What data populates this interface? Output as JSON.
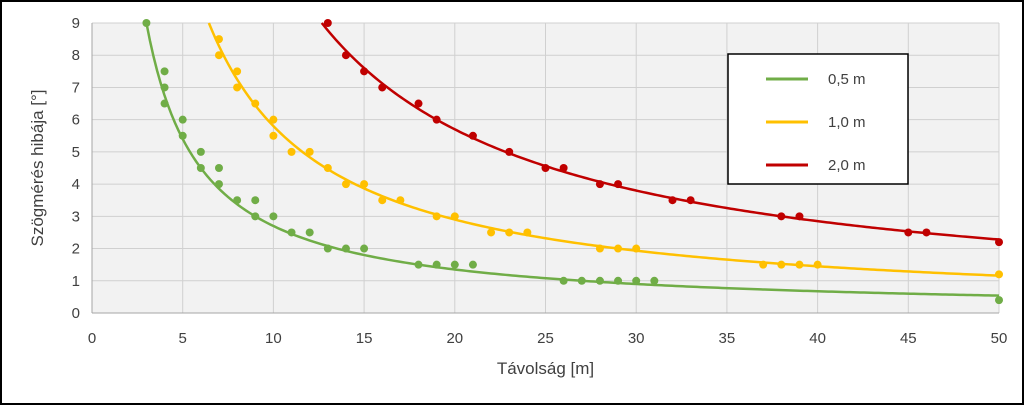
{
  "chart_data": {
    "type": "scatter",
    "title": "",
    "xlabel": "Távolság [m]",
    "ylabel": "Szögmérés hibája [°]",
    "xlim": [
      0,
      50
    ],
    "ylim": [
      0,
      9
    ],
    "xticks": [
      0,
      5,
      10,
      15,
      20,
      25,
      30,
      35,
      40,
      45,
      50
    ],
    "yticks": [
      0,
      1,
      2,
      3,
      4,
      5,
      6,
      7,
      8,
      9
    ],
    "grid": true,
    "legend_position": "top-right",
    "series": [
      {
        "name": "0,5 m",
        "color": "#70ad47",
        "trend_k": 27,
        "points": [
          [
            3,
            9
          ],
          [
            4,
            7.5
          ],
          [
            4,
            7
          ],
          [
            4,
            6.5
          ],
          [
            5,
            6
          ],
          [
            5,
            5.5
          ],
          [
            6,
            5
          ],
          [
            6,
            4.5
          ],
          [
            7,
            4.5
          ],
          [
            7,
            4
          ],
          [
            8,
            3.5
          ],
          [
            9,
            3.5
          ],
          [
            9,
            3
          ],
          [
            10,
            3
          ],
          [
            11,
            2.5
          ],
          [
            12,
            2.5
          ],
          [
            13,
            2
          ],
          [
            14,
            2
          ],
          [
            15,
            2
          ],
          [
            18,
            1.5
          ],
          [
            19,
            1.5
          ],
          [
            20,
            1.5
          ],
          [
            21,
            1.5
          ],
          [
            26,
            1
          ],
          [
            27,
            1
          ],
          [
            28,
            1
          ],
          [
            29,
            1
          ],
          [
            30,
            1
          ],
          [
            31,
            1
          ],
          [
            50,
            0.4
          ]
        ]
      },
      {
        "name": "1,0 m",
        "color": "#ffc000",
        "trend_k": 58,
        "points": [
          [
            7,
            8.5
          ],
          [
            7,
            8
          ],
          [
            8,
            7.5
          ],
          [
            8,
            7
          ],
          [
            9,
            6.5
          ],
          [
            10,
            6
          ],
          [
            10,
            5.5
          ],
          [
            11,
            5
          ],
          [
            12,
            5
          ],
          [
            13,
            4.5
          ],
          [
            14,
            4
          ],
          [
            15,
            4
          ],
          [
            16,
            3.5
          ],
          [
            17,
            3.5
          ],
          [
            19,
            3
          ],
          [
            20,
            3
          ],
          [
            22,
            2.5
          ],
          [
            23,
            2.5
          ],
          [
            24,
            2.5
          ],
          [
            28,
            2
          ],
          [
            29,
            2
          ],
          [
            30,
            2
          ],
          [
            37,
            1.5
          ],
          [
            38,
            1.5
          ],
          [
            39,
            1.5
          ],
          [
            40,
            1.5
          ],
          [
            50,
            1.2
          ]
        ]
      },
      {
        "name": "2,0 m",
        "color": "#c00000",
        "trend_k": 114,
        "points": [
          [
            13,
            9
          ],
          [
            14,
            8
          ],
          [
            15,
            7.5
          ],
          [
            16,
            7
          ],
          [
            18,
            6.5
          ],
          [
            19,
            6
          ],
          [
            21,
            5.5
          ],
          [
            23,
            5
          ],
          [
            25,
            4.5
          ],
          [
            26,
            4.5
          ],
          [
            28,
            4
          ],
          [
            29,
            4
          ],
          [
            32,
            3.5
          ],
          [
            33,
            3.5
          ],
          [
            38,
            3
          ],
          [
            39,
            3
          ],
          [
            45,
            2.5
          ],
          [
            46,
            2.5
          ],
          [
            50,
            2.2
          ]
        ]
      }
    ]
  }
}
